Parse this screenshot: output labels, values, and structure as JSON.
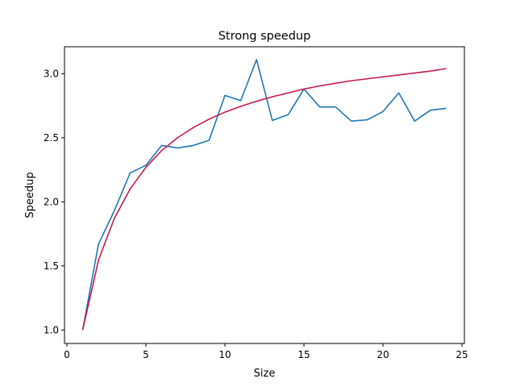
{
  "chart_data": {
    "type": "line",
    "title": "Strong speedup",
    "xlabel": "Size",
    "ylabel": "Speedup",
    "xlim": [
      -0.15,
      25.15
    ],
    "ylim": [
      0.895,
      3.21
    ],
    "grid": false,
    "x_ticks": [
      0,
      5,
      10,
      15,
      20,
      25
    ],
    "y_ticks": [
      1.0,
      1.5,
      2.0,
      2.5,
      3.0
    ],
    "x_tick_labels": [
      "0",
      "5",
      "10",
      "15",
      "20",
      "25"
    ],
    "y_tick_labels": [
      "1.0",
      "1.5",
      "2.0",
      "2.5",
      "3.0"
    ],
    "series": [
      {
        "color": "#1f77b4",
        "x": [
          1,
          2,
          3,
          4,
          5,
          6,
          7,
          8,
          9,
          10,
          11,
          12,
          13,
          14,
          15,
          16,
          17,
          18,
          19,
          20,
          21,
          22,
          23,
          24
        ],
        "y": [
          1.0,
          1.67,
          1.93,
          2.225,
          2.285,
          2.44,
          2.42,
          2.44,
          2.48,
          2.83,
          2.79,
          3.11,
          2.635,
          2.68,
          2.88,
          2.74,
          2.74,
          2.63,
          2.64,
          2.705,
          2.85,
          2.63,
          2.715,
          2.73
        ]
      },
      {
        "color": "#c7194f",
        "x": [
          1,
          2,
          3,
          4,
          5,
          6,
          7,
          8,
          9,
          10,
          11,
          12,
          13,
          14,
          15,
          16,
          17,
          18,
          19,
          20,
          21,
          22,
          23,
          24
        ],
        "y": [
          1.0,
          1.545,
          1.87,
          2.1,
          2.27,
          2.4,
          2.5,
          2.58,
          2.645,
          2.7,
          2.745,
          2.785,
          2.82,
          2.85,
          2.88,
          2.905,
          2.925,
          2.945,
          2.96,
          2.975,
          2.99,
          3.005,
          3.02,
          3.04
        ]
      }
    ]
  }
}
